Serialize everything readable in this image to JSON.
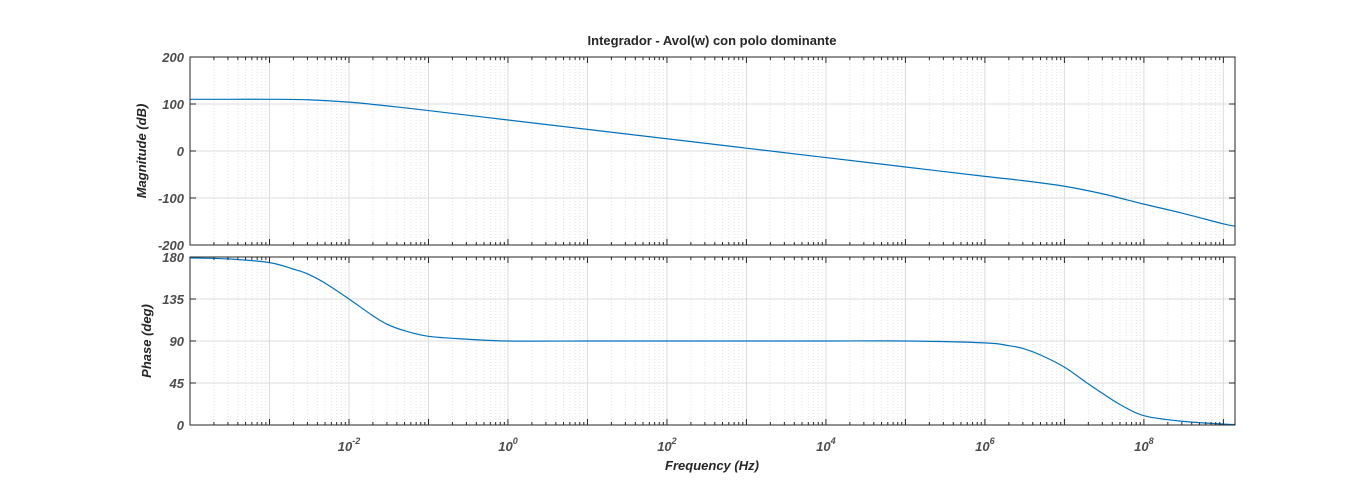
{
  "title": "Integrador - Avol(w) con polo dominante",
  "chart_data": [
    {
      "type": "line",
      "name": "magnitude",
      "ylabel": "Magnitude (dB)",
      "xscale": "log",
      "xlim": [
        0.0001,
        1400000000
      ],
      "ylim": [
        -200,
        200
      ],
      "yticks": [
        "200",
        "100",
        "0",
        "-100",
        "-200"
      ],
      "ytick_values": [
        200,
        100,
        0,
        -100,
        -200
      ],
      "grid": true,
      "color": "#0072BD",
      "series": [
        {
          "x": [
            0.0001,
            0.0003,
            0.001,
            0.003,
            0.01,
            0.03,
            0.1,
            1,
            10,
            100,
            1000,
            10000,
            100000,
            1000000,
            3000000,
            10000000,
            30000000,
            100000000,
            300000000,
            1000000000,
            1400000000
          ],
          "y": [
            110,
            110,
            110,
            109,
            104,
            96,
            86,
            66,
            46,
            26,
            6,
            -14,
            -34,
            -54,
            -63,
            -75,
            -91,
            -113,
            -132,
            -155,
            -160
          ]
        }
      ]
    },
    {
      "type": "line",
      "name": "phase",
      "ylabel": "Phase (deg)",
      "xlabel": "Frequency  (Hz)",
      "xscale": "log",
      "xlim": [
        0.0001,
        1400000000
      ],
      "ylim": [
        0,
        180
      ],
      "yticks": [
        "180",
        "135",
        "90",
        "45",
        "0"
      ],
      "ytick_values": [
        180,
        135,
        90,
        45,
        0
      ],
      "xticks": [
        {
          "base": "10",
          "exp": "-2",
          "value": 0.01
        },
        {
          "base": "10",
          "exp": "0",
          "value": 1
        },
        {
          "base": "10",
          "exp": "2",
          "value": 100
        },
        {
          "base": "10",
          "exp": "4",
          "value": 10000
        },
        {
          "base": "10",
          "exp": "6",
          "value": 1000000
        },
        {
          "base": "10",
          "exp": "8",
          "value": 100000000
        }
      ],
      "grid": true,
      "color": "#0072BD",
      "series": [
        {
          "x": [
            0.0001,
            0.0003,
            0.001,
            0.002,
            0.003,
            0.005,
            0.01,
            0.02,
            0.03,
            0.05,
            0.1,
            0.3,
            1,
            10,
            100,
            1000,
            10000,
            100000,
            1000000,
            2000000,
            3000000,
            5000000,
            10000000,
            20000000,
            30000000,
            50000000,
            100000000,
            300000000,
            1000000000,
            1400000000
          ],
          "y": [
            179,
            178,
            174,
            167,
            162,
            152,
            135,
            117,
            108,
            101,
            95,
            92,
            90,
            90,
            90,
            90,
            90,
            90,
            88,
            85,
            82,
            75,
            62,
            44,
            34,
            22,
            10,
            4,
            1,
            0.5
          ]
        }
      ]
    }
  ]
}
